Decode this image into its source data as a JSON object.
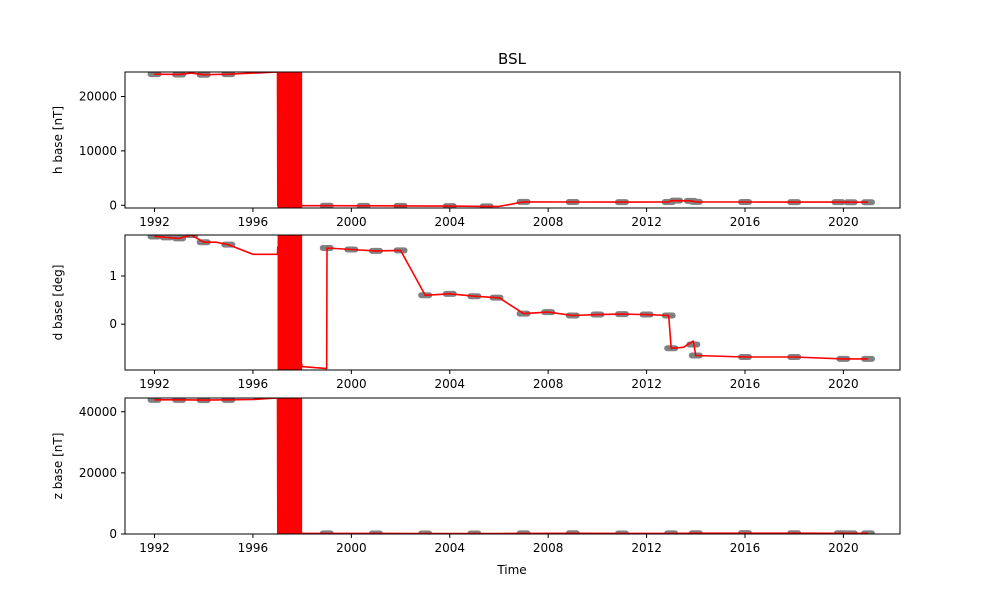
{
  "figure": {
    "title": "BSL",
    "xlabel": "Time"
  },
  "colors": {
    "line": "#ff0000",
    "points": "#808080",
    "axes": "#000000",
    "background": "#ffffff"
  },
  "chart_data": [
    {
      "type": "line",
      "ylabel": "h base [nT]",
      "xlim": [
        1990.8,
        2022.3
      ],
      "ylim": [
        -500,
        24500
      ],
      "xticks": [
        1992,
        1996,
        2000,
        2004,
        2008,
        2012,
        2016,
        2020
      ],
      "xticklabels": [
        "1992",
        "1996",
        "2000",
        "2004",
        "2008",
        "2012",
        "2016",
        "2020"
      ],
      "yticks": [
        0,
        10000,
        20000
      ],
      "yticklabels": [
        "0",
        "10000",
        "20000"
      ],
      "grid": false,
      "markers": [
        [
          1992.0,
          24100
        ],
        [
          1993.0,
          24050
        ],
        [
          1994.0,
          24000
        ],
        [
          1995.0,
          24100
        ],
        [
          1999.0,
          -80
        ],
        [
          2000.5,
          -100
        ],
        [
          2002.0,
          -120
        ],
        [
          2004.0,
          -150
        ],
        [
          2005.5,
          -200
        ],
        [
          2007.0,
          620
        ],
        [
          2009.0,
          600
        ],
        [
          2011.0,
          590
        ],
        [
          2012.9,
          600
        ],
        [
          2013.2,
          850
        ],
        [
          2013.8,
          820
        ],
        [
          2014.0,
          620
        ],
        [
          2016.0,
          600
        ],
        [
          2018.0,
          590
        ],
        [
          2019.8,
          580
        ],
        [
          2020.3,
          560
        ],
        [
          2021.0,
          560
        ]
      ],
      "fill_span": [
        1997.0,
        1998.0
      ],
      "series": [
        {
          "x": [
            1992.0,
            1993.0,
            1993.5,
            1994.0,
            1995.0,
            1996.0,
            1997.0,
            1997.01,
            1997.99,
            1998.0,
            1999.0,
            2000.5,
            2002.0,
            2004.0,
            2005.5,
            2006.0,
            2007.0,
            2009.0,
            2011.0,
            2012.9,
            2013.0,
            2013.8,
            2014.0,
            2016.0,
            2018.0,
            2019.8,
            2020.3,
            2021.0
          ],
          "y": [
            24100,
            24050,
            24300,
            24000,
            24100,
            24300,
            24500,
            -80,
            -80,
            -80,
            -80,
            -100,
            -120,
            -150,
            -200,
            -200,
            620,
            600,
            590,
            600,
            850,
            820,
            620,
            600,
            590,
            580,
            560,
            560
          ]
        }
      ]
    },
    {
      "type": "line",
      "ylabel": "d base [deg]",
      "xlim": [
        1990.8,
        2022.3
      ],
      "ylim": [
        -0.95,
        1.85
      ],
      "xticks": [
        1992,
        1996,
        2000,
        2004,
        2008,
        2012,
        2016,
        2020
      ],
      "xticklabels": [
        "1992",
        "1996",
        "2000",
        "2004",
        "2008",
        "2012",
        "2016",
        "2020"
      ],
      "yticks": [
        0,
        1
      ],
      "yticklabels": [
        "0",
        "1"
      ],
      "grid": false,
      "markers": [
        [
          1992.0,
          1.82
        ],
        [
          1992.5,
          1.8
        ],
        [
          1993.0,
          1.78
        ],
        [
          1993.5,
          1.85
        ],
        [
          1994.0,
          1.7
        ],
        [
          1995.0,
          1.65
        ],
        [
          1999.0,
          1.58
        ],
        [
          2000.0,
          1.55
        ],
        [
          2001.0,
          1.52
        ],
        [
          2002.0,
          1.53
        ],
        [
          2003.0,
          0.6
        ],
        [
          2004.0,
          0.63
        ],
        [
          2005.0,
          0.58
        ],
        [
          2005.9,
          0.55
        ],
        [
          2007.0,
          0.22
        ],
        [
          2008.0,
          0.25
        ],
        [
          2009.0,
          0.18
        ],
        [
          2010.0,
          0.2
        ],
        [
          2011.0,
          0.21
        ],
        [
          2012.0,
          0.2
        ],
        [
          2012.9,
          0.18
        ],
        [
          2013.0,
          -0.5
        ],
        [
          2013.9,
          -0.42
        ],
        [
          2014.0,
          -0.65
        ],
        [
          2016.0,
          -0.68
        ],
        [
          2018.0,
          -0.68
        ],
        [
          2020.0,
          -0.72
        ],
        [
          2021.0,
          -0.72
        ]
      ],
      "fill_span": [
        1997.0,
        1998.0
      ],
      "series": [
        {
          "x": [
            1992.0,
            1992.5,
            1993.0,
            1993.5,
            1994.0,
            1994.5,
            1995.0,
            1996.0,
            1997.0,
            1997.01,
            1998.0,
            1998.5,
            1999.0,
            1999.01,
            2000.0,
            2001.0,
            2002.0,
            2003.0,
            2004.0,
            2005.0,
            2005.9,
            2006.0,
            2007.0,
            2008.0,
            2009.0,
            2010.0,
            2011.0,
            2012.0,
            2012.9,
            2013.0,
            2013.5,
            2013.9,
            2014.0,
            2016.0,
            2018.0,
            2020.0,
            2021.0
          ],
          "y": [
            1.82,
            1.8,
            1.78,
            1.85,
            1.7,
            1.7,
            1.65,
            1.45,
            1.45,
            1.6,
            -0.88,
            -0.9,
            -0.92,
            1.58,
            1.55,
            1.52,
            1.53,
            0.6,
            0.63,
            0.58,
            0.55,
            0.55,
            0.22,
            0.25,
            0.18,
            0.2,
            0.21,
            0.2,
            0.18,
            -0.5,
            -0.48,
            -0.35,
            -0.65,
            -0.68,
            -0.68,
            -0.72,
            -0.72
          ]
        }
      ]
    },
    {
      "type": "line",
      "ylabel": "z base [nT]",
      "xlim": [
        1990.8,
        2022.3
      ],
      "ylim": [
        0,
        44500
      ],
      "xticks": [
        1992,
        1996,
        2000,
        2004,
        2008,
        2012,
        2016,
        2020
      ],
      "xticklabels": [
        "1992",
        "1996",
        "2000",
        "2004",
        "2008",
        "2012",
        "2016",
        "2020"
      ],
      "yticks": [
        0,
        20000,
        40000
      ],
      "yticklabels": [
        "0",
        "20000",
        "40000"
      ],
      "grid": false,
      "markers": [
        [
          1992.0,
          43900
        ],
        [
          1993.0,
          43900
        ],
        [
          1994.0,
          43800
        ],
        [
          1995.0,
          43900
        ],
        [
          1999.0,
          200
        ],
        [
          2001.0,
          180
        ],
        [
          2003.0,
          170
        ],
        [
          2005.0,
          160
        ],
        [
          2007.0,
          200
        ],
        [
          2009.0,
          230
        ],
        [
          2011.0,
          180
        ],
        [
          2013.0,
          190
        ],
        [
          2014.0,
          260
        ],
        [
          2016.0,
          270
        ],
        [
          2018.0,
          250
        ],
        [
          2019.9,
          240
        ],
        [
          2020.3,
          220
        ],
        [
          2021.0,
          220
        ]
      ],
      "fill_span": [
        1997.0,
        1998.0
      ],
      "series": [
        {
          "x": [
            1992.0,
            1993.0,
            1994.0,
            1995.0,
            1996.0,
            1997.0,
            1997.01,
            1998.0,
            1999.0,
            2001.0,
            2003.0,
            2005.0,
            2006.0,
            2007.0,
            2009.0,
            2011.0,
            2013.0,
            2014.0,
            2016.0,
            2018.0,
            2019.9,
            2020.3,
            2021.0
          ],
          "y": [
            43900,
            43900,
            43800,
            43900,
            44000,
            44500,
            200,
            200,
            200,
            180,
            170,
            160,
            150,
            200,
            230,
            180,
            190,
            260,
            270,
            250,
            240,
            220,
            220
          ]
        }
      ]
    }
  ]
}
